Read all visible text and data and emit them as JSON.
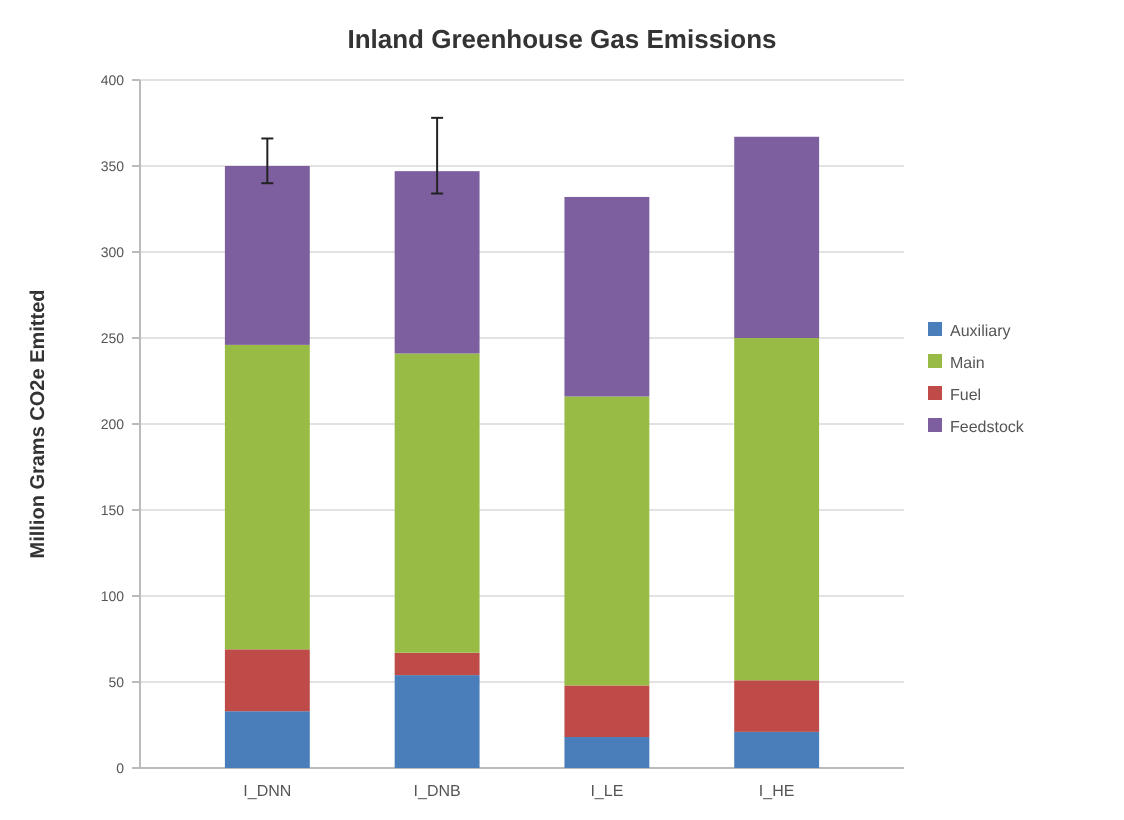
{
  "chart_data": {
    "type": "bar",
    "title": "Inland Greenhouse Gas Emissions",
    "ylabel": "Million Grams CO2e Emitted",
    "categories": [
      "I_DNN",
      "I_DNB",
      "I_LE",
      "I_HE"
    ],
    "stacked": true,
    "ylim": [
      0,
      400
    ],
    "yticks": [
      0,
      50,
      100,
      150,
      200,
      250,
      300,
      350,
      400
    ],
    "grid": "y",
    "legend": "right",
    "series": [
      {
        "name": "Auxiliary",
        "color": "#4a7ebb",
        "values": [
          33,
          54,
          18,
          21
        ]
      },
      {
        "name": "Fuel",
        "color": "#be4b48",
        "values": [
          36,
          13,
          30,
          30
        ]
      },
      {
        "name": "Main",
        "color": "#98bb45",
        "values": [
          177,
          174,
          168,
          199
        ]
      },
      {
        "name": "Feedstock",
        "color": "#7d5fa0",
        "values": [
          104,
          106,
          116,
          117
        ],
        "errors": [
          [
            340,
            366
          ],
          [
            334,
            378
          ],
          null,
          null
        ]
      }
    ]
  }
}
